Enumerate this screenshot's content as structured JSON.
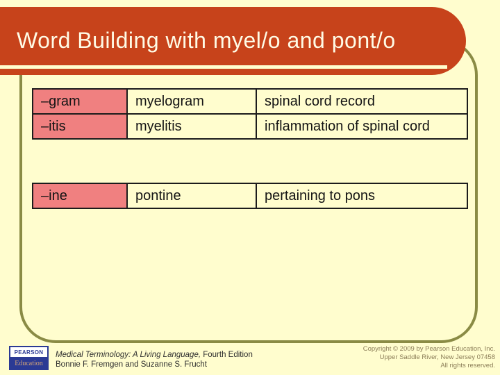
{
  "slide": {
    "title": "Word Building with myel/o and pont/o"
  },
  "colors": {
    "bg": "#FFFDCE",
    "accent": "#C7431B",
    "frame": "#8A8B45",
    "salmon": "#F08080",
    "logo-blue": "#2B3A94",
    "muted": "#8C7E58"
  },
  "tables": [
    {
      "rows": [
        {
          "cells": [
            "–gram",
            "myelogram",
            "spinal cord record"
          ]
        },
        {
          "cells": [
            "–itis",
            "myelitis",
            "inflammation of spinal cord"
          ]
        }
      ]
    },
    {
      "rows": [
        {
          "cells": [
            "–ine",
            "pontine",
            "pertaining to pons"
          ]
        }
      ]
    }
  ],
  "footer": {
    "logo": {
      "top": "PEARSON",
      "bottom": "Education"
    },
    "book_title_italic": "Medical Terminology: A Living Language,",
    "book_title_rest": " Fourth Edition",
    "authors": "Bonnie F. Fremgen and Suzanne S. Frucht",
    "copyright_lines": [
      "Copyright © 2009 by Pearson Education, Inc.",
      "Upper Saddle River, New Jersey 07458",
      "All rights reserved."
    ]
  }
}
